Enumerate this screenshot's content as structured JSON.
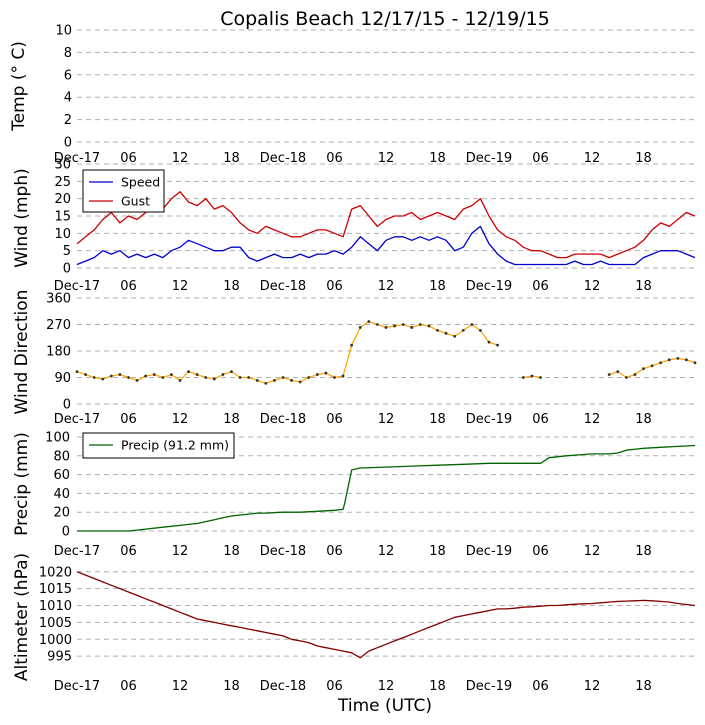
{
  "title": "Copalis Beach 12/17/15 - 12/19/15",
  "xlabel": "Time (UTC)",
  "x_tick_labels": [
    "Dec-17",
    "06",
    "12",
    "18",
    "Dec-18",
    "06",
    "12",
    "18",
    "Dec-19",
    "06",
    "12",
    "18"
  ],
  "colors": {
    "speed": "#0000cc",
    "gust": "#cc0000",
    "direction_line": "#ffa500",
    "direction_marker": "#333333",
    "precip": "#006400",
    "altimeter": "#800000",
    "grid": "#b0b0b0"
  },
  "chart_data": [
    {
      "type": "line",
      "ylabel": "Temp (° C)",
      "ylim": [
        0,
        10
      ],
      "yticks": [
        0,
        2,
        4,
        6,
        8,
        10
      ],
      "xlim": [
        0,
        72
      ],
      "grid": true,
      "series": []
    },
    {
      "type": "line",
      "ylabel": "Wind (mph)",
      "ylim": [
        0,
        30
      ],
      "yticks": [
        0,
        5,
        10,
        15,
        20,
        25,
        30
      ],
      "xlim": [
        0,
        72
      ],
      "grid": true,
      "legend": "top-left",
      "series": [
        {
          "name": "Speed",
          "x": [
            0,
            1,
            2,
            3,
            4,
            5,
            6,
            7,
            8,
            9,
            10,
            11,
            12,
            13,
            14,
            15,
            16,
            17,
            18,
            19,
            20,
            21,
            22,
            23,
            24,
            25,
            26,
            27,
            28,
            29,
            30,
            31,
            32,
            33,
            34,
            35,
            36,
            37,
            38,
            39,
            40,
            41,
            42,
            43,
            44,
            45,
            46,
            47,
            48,
            49,
            50,
            51,
            52,
            53,
            54,
            55,
            56,
            57,
            58,
            59,
            60,
            61,
            62,
            63,
            64,
            65,
            66,
            67,
            68,
            69,
            70,
            71,
            72
          ],
          "values": [
            1,
            2,
            3,
            5,
            4,
            5,
            3,
            4,
            3,
            4,
            3,
            5,
            6,
            8,
            7,
            6,
            5,
            5,
            6,
            6,
            3,
            2,
            3,
            4,
            3,
            3,
            4,
            3,
            4,
            4,
            5,
            4,
            6,
            9,
            7,
            5,
            8,
            9,
            9,
            8,
            9,
            8,
            9,
            8,
            5,
            6,
            10,
            12,
            7,
            4,
            2,
            1,
            1,
            1,
            1,
            1,
            1,
            1,
            2,
            1,
            1,
            2,
            1,
            1,
            1,
            1,
            3,
            4,
            5,
            5,
            5,
            4,
            3
          ]
        },
        {
          "name": "Gust",
          "x": [
            0,
            1,
            2,
            3,
            4,
            5,
            6,
            7,
            8,
            9,
            10,
            11,
            12,
            13,
            14,
            15,
            16,
            17,
            18,
            19,
            20,
            21,
            22,
            23,
            24,
            25,
            26,
            27,
            28,
            29,
            30,
            31,
            32,
            33,
            34,
            35,
            36,
            37,
            38,
            39,
            40,
            41,
            42,
            43,
            44,
            45,
            46,
            47,
            48,
            49,
            50,
            51,
            52,
            53,
            54,
            55,
            56,
            57,
            58,
            59,
            60,
            61,
            62,
            63,
            64,
            65,
            66,
            67,
            68,
            69,
            70,
            71,
            72
          ],
          "values": [
            7,
            9,
            11,
            14,
            16,
            13,
            15,
            14,
            16,
            18,
            17,
            20,
            22,
            19,
            18,
            20,
            17,
            18,
            16,
            13,
            11,
            10,
            12,
            11,
            10,
            9,
            9,
            10,
            11,
            11,
            10,
            9,
            17,
            18,
            15,
            12,
            14,
            15,
            15,
            16,
            14,
            15,
            16,
            15,
            14,
            17,
            18,
            20,
            15,
            11,
            9,
            8,
            6,
            5,
            5,
            4,
            3,
            3,
            4,
            4,
            4,
            4,
            3,
            4,
            5,
            6,
            8,
            11,
            13,
            12,
            14,
            16,
            15
          ]
        }
      ]
    },
    {
      "type": "line",
      "ylabel": "Wind Direction",
      "ylim": [
        0,
        360
      ],
      "yticks": [
        0,
        90,
        180,
        270,
        360
      ],
      "xlim": [
        0,
        72
      ],
      "grid": true,
      "series": [
        {
          "x": [
            0,
            1,
            2,
            3,
            4,
            5,
            6,
            7,
            8,
            9,
            10,
            11,
            12,
            13,
            14,
            15,
            16,
            17,
            18,
            19,
            20,
            21,
            22,
            23,
            24,
            25,
            26,
            27,
            28,
            29,
            30,
            31,
            32,
            33,
            34,
            35,
            36,
            37,
            38,
            39,
            40,
            41,
            42,
            43,
            44,
            45,
            46,
            47,
            48,
            49,
            50,
            51,
            52,
            53,
            54,
            55,
            56,
            57,
            58,
            59,
            60,
            61,
            62,
            63,
            64,
            65,
            66,
            67,
            68,
            69,
            70,
            71,
            72
          ],
          "values": [
            110,
            100,
            90,
            85,
            95,
            100,
            90,
            80,
            95,
            100,
            90,
            100,
            80,
            110,
            100,
            90,
            85,
            100,
            110,
            90,
            90,
            80,
            70,
            80,
            90,
            80,
            75,
            90,
            100,
            105,
            90,
            95,
            200,
            260,
            280,
            270,
            260,
            265,
            270,
            260,
            270,
            265,
            250,
            240,
            230,
            250,
            270,
            250,
            210,
            200,
            null,
            null,
            90,
            95,
            90,
            null,
            null,
            null,
            null,
            null,
            null,
            null,
            100,
            110,
            90,
            100,
            120,
            130,
            140,
            150,
            155,
            150,
            140
          ]
        }
      ]
    },
    {
      "type": "line",
      "ylabel": "Precip (mm)",
      "ylim": [
        0,
        100
      ],
      "yticks": [
        0,
        20,
        40,
        60,
        80,
        100
      ],
      "xlim": [
        0,
        72
      ],
      "grid": true,
      "legend": "top-left",
      "series": [
        {
          "name": "Precip (91.2 mm)",
          "x": [
            0,
            3,
            6,
            7,
            8,
            10,
            12,
            13,
            14,
            15,
            16,
            17,
            18,
            20,
            21,
            22,
            24,
            26,
            28,
            30,
            31,
            31.2,
            32,
            33,
            36,
            39,
            42,
            45,
            48,
            51,
            54,
            55,
            57,
            60,
            62,
            63,
            64,
            66,
            68,
            70,
            72
          ],
          "values": [
            0,
            0,
            0,
            1,
            2,
            4,
            6,
            7,
            8,
            10,
            12,
            14,
            16,
            18,
            19,
            19,
            20,
            20,
            21,
            22,
            23,
            30,
            65,
            67,
            68,
            69,
            70,
            71,
            72,
            72,
            72,
            78,
            80,
            82,
            82,
            83,
            86,
            88,
            89,
            90,
            91
          ]
        }
      ]
    },
    {
      "type": "line",
      "ylabel": "Altimeter (hPa)",
      "ylim": [
        990,
        1022
      ],
      "yticks": [
        995,
        1000,
        1005,
        1010,
        1015,
        1020
      ],
      "xlim": [
        0,
        72
      ],
      "grid": true,
      "series": [
        {
          "x": [
            0,
            1,
            2,
            3,
            4,
            5,
            6,
            7,
            8,
            9,
            10,
            11,
            12,
            13,
            14,
            15,
            16,
            17,
            18,
            19,
            20,
            21,
            22,
            23,
            24,
            25,
            26,
            27,
            28,
            29,
            30,
            31,
            32,
            33,
            34,
            35,
            36,
            37,
            38,
            39,
            40,
            41,
            42,
            43,
            44,
            45,
            46,
            47,
            48,
            49,
            50,
            51,
            52,
            53,
            54,
            55,
            56,
            57,
            58,
            59,
            60,
            61,
            62,
            63,
            64,
            65,
            66,
            67,
            68,
            69,
            70,
            71,
            72
          ],
          "values": [
            1020,
            1019,
            1018,
            1017,
            1016,
            1015,
            1014,
            1013,
            1012,
            1011,
            1010,
            1009,
            1008,
            1007,
            1006,
            1005.5,
            1005,
            1004.5,
            1004,
            1003.5,
            1003,
            1002.5,
            1002,
            1001.5,
            1001,
            1000,
            999.5,
            999,
            998,
            997.5,
            997,
            996.5,
            996,
            994.5,
            996.5,
            997.5,
            998.5,
            999.5,
            1000.5,
            1001.5,
            1002.5,
            1003.5,
            1004.5,
            1005.5,
            1006.5,
            1007,
            1007.5,
            1008,
            1008.5,
            1009,
            1009,
            1009.2,
            1009.5,
            1009.6,
            1009.8,
            1010,
            1010,
            1010.2,
            1010.4,
            1010.5,
            1010.6,
            1010.8,
            1011,
            1011.2,
            1011.3,
            1011.4,
            1011.5,
            1011.4,
            1011.2,
            1011,
            1010.6,
            1010.3,
            1010
          ]
        }
      ]
    }
  ]
}
